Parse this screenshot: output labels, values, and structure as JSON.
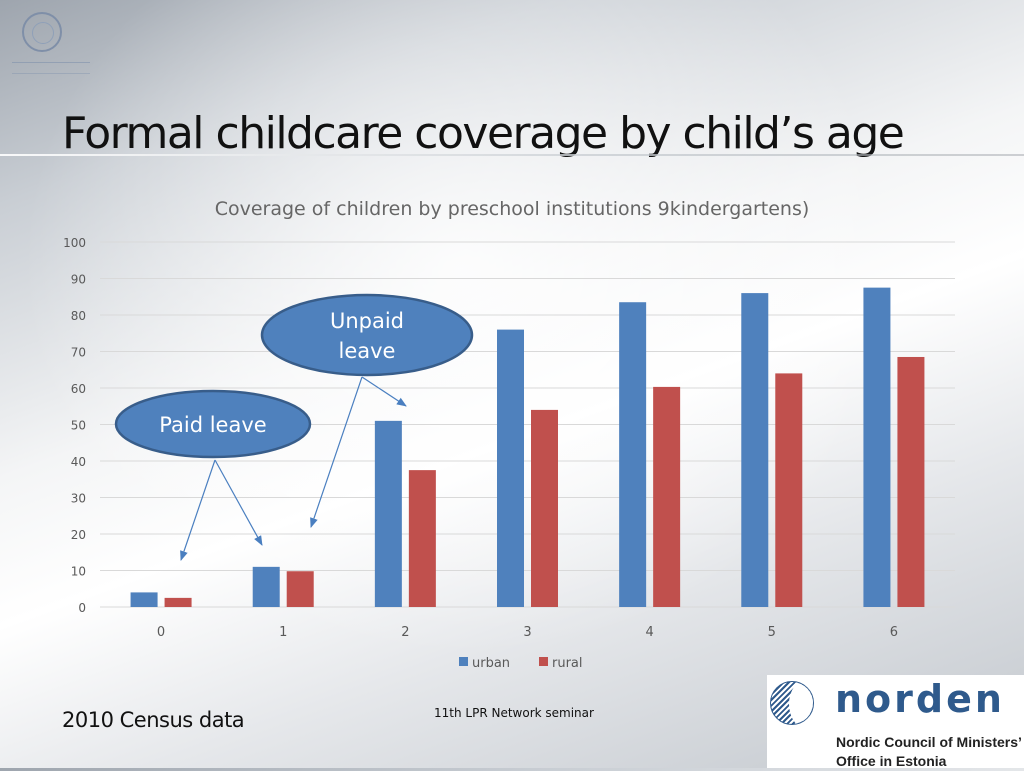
{
  "slide": {
    "title": "Formal childcare coverage by child’s age",
    "footer_left": "2010 Census data",
    "footer_center": "11th LPR Network seminar",
    "logo_word": "norden",
    "logo_subtitle_line1": "Nordic Council of Ministers’",
    "logo_subtitle_line2": "Office in Estonia"
  },
  "callouts": [
    {
      "label_lines": [
        "Paid leave"
      ]
    },
    {
      "label_lines": [
        "Unpaid",
        "leave"
      ]
    }
  ],
  "colors": {
    "urban": "#4f81bd",
    "rural": "#c0504d",
    "callout_fill": "#4f81bd",
    "callout_stroke": "#385d8a",
    "gridline": "#d9d9d9",
    "axis_text": "#595959"
  },
  "chart_data": {
    "type": "bar",
    "title": "Coverage of children by preschool institutions 9kindergartens)",
    "categories": [
      "0",
      "1",
      "2",
      "3",
      "4",
      "5",
      "6"
    ],
    "series": [
      {
        "name": "urban",
        "values": [
          4,
          11,
          51,
          76,
          83.5,
          86,
          87.5
        ]
      },
      {
        "name": "rural",
        "values": [
          2.5,
          9.8,
          37.5,
          54,
          60.3,
          64,
          68.5
        ]
      }
    ],
    "ylim": [
      0,
      100
    ],
    "yticks": [
      "0",
      "10",
      "20",
      "30",
      "40",
      "50",
      "60",
      "70",
      "80",
      "90",
      "100"
    ],
    "grid": true,
    "legend": "bottom"
  }
}
